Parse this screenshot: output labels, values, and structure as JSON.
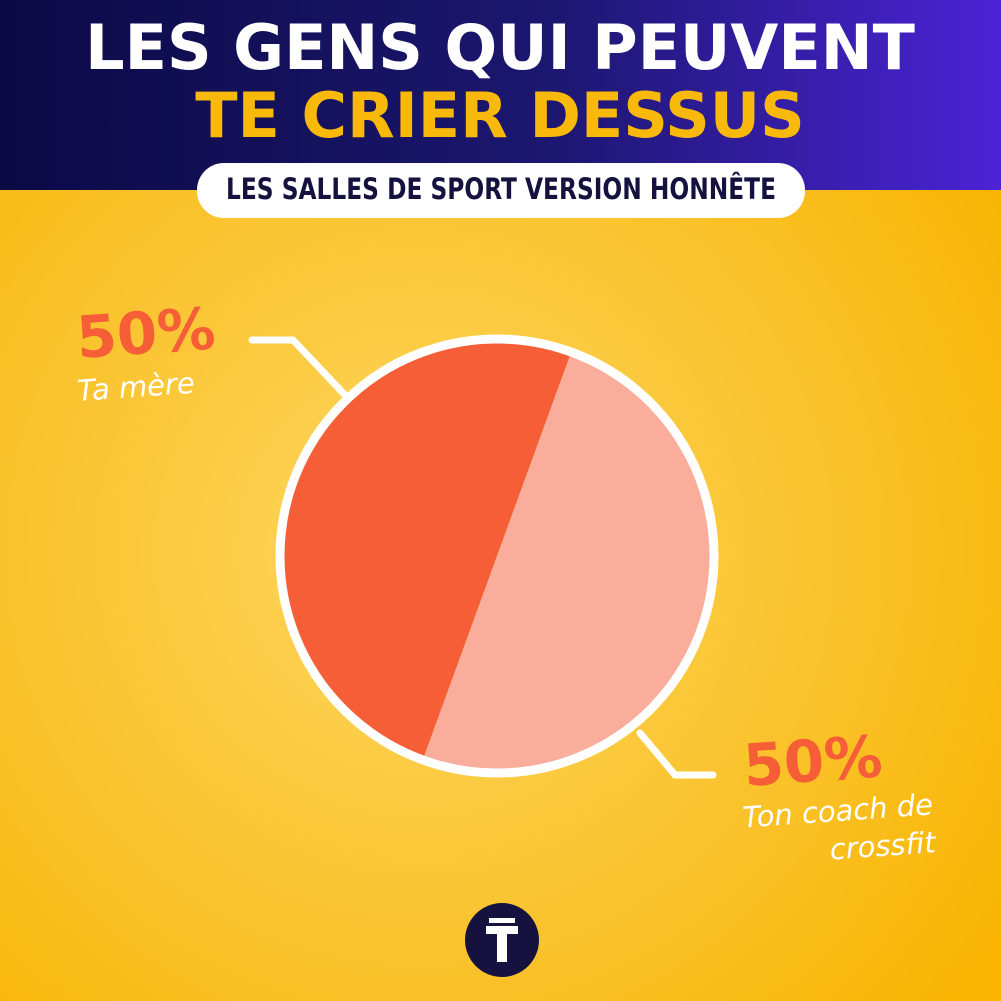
{
  "chart_data": {
    "type": "pie",
    "title": [
      "LES GENS QUI PEUVENT",
      "TE CRIER DESSUS"
    ],
    "subtitle": "LES SALLES DE SPORT VERSION HONNÊTE",
    "categories": [
      "Ta mère",
      "Ton coach de crossfit"
    ],
    "values": [
      50,
      50
    ],
    "value_labels": [
      "50%",
      "50%"
    ],
    "colors": [
      "#f55e36",
      "#f9ad9a"
    ]
  }
}
